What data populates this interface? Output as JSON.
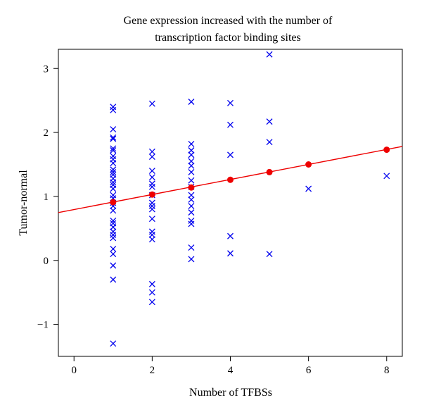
{
  "chart_data": {
    "type": "scatter",
    "title": [
      "Gene expression increased with the number of",
      "transcription factor binding sites"
    ],
    "xlabel": "Number of TFBSs",
    "ylabel": "Tumor-normal",
    "xlim": [
      -0.4,
      8.4
    ],
    "ylim": [
      -1.5,
      3.3
    ],
    "x_ticks": [
      0,
      2,
      4,
      6,
      8
    ],
    "y_ticks": [
      -1,
      0,
      1,
      2,
      3
    ],
    "x_tick_labels": [
      "0",
      "2",
      "4",
      "6",
      "8"
    ],
    "y_tick_labels": [
      "−1",
      "0",
      "1",
      "2",
      "3"
    ],
    "grid": false,
    "series": [
      {
        "marker": "x",
        "color": "#0000ee",
        "points": [
          [
            1,
            2.4
          ],
          [
            1,
            2.35
          ],
          [
            1,
            2.05
          ],
          [
            1,
            1.92
          ],
          [
            1,
            1.9
          ],
          [
            1,
            1.75
          ],
          [
            1,
            1.72
          ],
          [
            1,
            1.63
          ],
          [
            1,
            1.58
          ],
          [
            1,
            1.52
          ],
          [
            1,
            1.42
          ],
          [
            1,
            1.38
          ],
          [
            1,
            1.34
          ],
          [
            1,
            1.28
          ],
          [
            1,
            1.22
          ],
          [
            1,
            1.18
          ],
          [
            1,
            1.12
          ],
          [
            1,
            1.02
          ],
          [
            1,
            0.97
          ],
          [
            1,
            0.9
          ],
          [
            1,
            0.85
          ],
          [
            1,
            0.78
          ],
          [
            1,
            0.62
          ],
          [
            1,
            0.58
          ],
          [
            1,
            0.52
          ],
          [
            1,
            0.45
          ],
          [
            1,
            0.4
          ],
          [
            1,
            0.35
          ],
          [
            1,
            0.18
          ],
          [
            1,
            0.1
          ],
          [
            1,
            -0.08
          ],
          [
            1,
            -0.3
          ],
          [
            1,
            -1.3
          ],
          [
            2,
            2.45
          ],
          [
            2,
            1.7
          ],
          [
            2,
            1.62
          ],
          [
            2,
            1.4
          ],
          [
            2,
            1.3
          ],
          [
            2,
            1.2
          ],
          [
            2,
            1.15
          ],
          [
            2,
            1.02
          ],
          [
            2,
            0.9
          ],
          [
            2,
            0.85
          ],
          [
            2,
            0.8
          ],
          [
            2,
            0.65
          ],
          [
            2,
            0.45
          ],
          [
            2,
            0.4
          ],
          [
            2,
            0.33
          ],
          [
            2,
            -0.37
          ],
          [
            2,
            -0.5
          ],
          [
            2,
            -0.65
          ],
          [
            3,
            2.48
          ],
          [
            3,
            1.82
          ],
          [
            3,
            1.72
          ],
          [
            3,
            1.65
          ],
          [
            3,
            1.55
          ],
          [
            3,
            1.48
          ],
          [
            3,
            1.38
          ],
          [
            3,
            1.25
          ],
          [
            3,
            1.15
          ],
          [
            3,
            1.02
          ],
          [
            3,
            0.95
          ],
          [
            3,
            0.85
          ],
          [
            3,
            0.75
          ],
          [
            3,
            0.62
          ],
          [
            3,
            0.57
          ],
          [
            3,
            0.2
          ],
          [
            3,
            0.02
          ],
          [
            4,
            2.46
          ],
          [
            4,
            2.12
          ],
          [
            4,
            1.65
          ],
          [
            4,
            0.38
          ],
          [
            4,
            0.11
          ],
          [
            5,
            3.22
          ],
          [
            5,
            2.17
          ],
          [
            5,
            1.85
          ],
          [
            5,
            0.1
          ],
          [
            6,
            1.12
          ],
          [
            8,
            1.32
          ]
        ]
      },
      {
        "marker": "dot",
        "color": "#ee0000",
        "points": [
          [
            1,
            0.91
          ],
          [
            2,
            1.03
          ],
          [
            3,
            1.14
          ],
          [
            4,
            1.26
          ],
          [
            5,
            1.38
          ],
          [
            6,
            1.5
          ],
          [
            8,
            1.73
          ]
        ]
      }
    ],
    "regression_line": {
      "color": "#ee0000",
      "intercept": 0.795,
      "slope": 0.1175
    }
  }
}
